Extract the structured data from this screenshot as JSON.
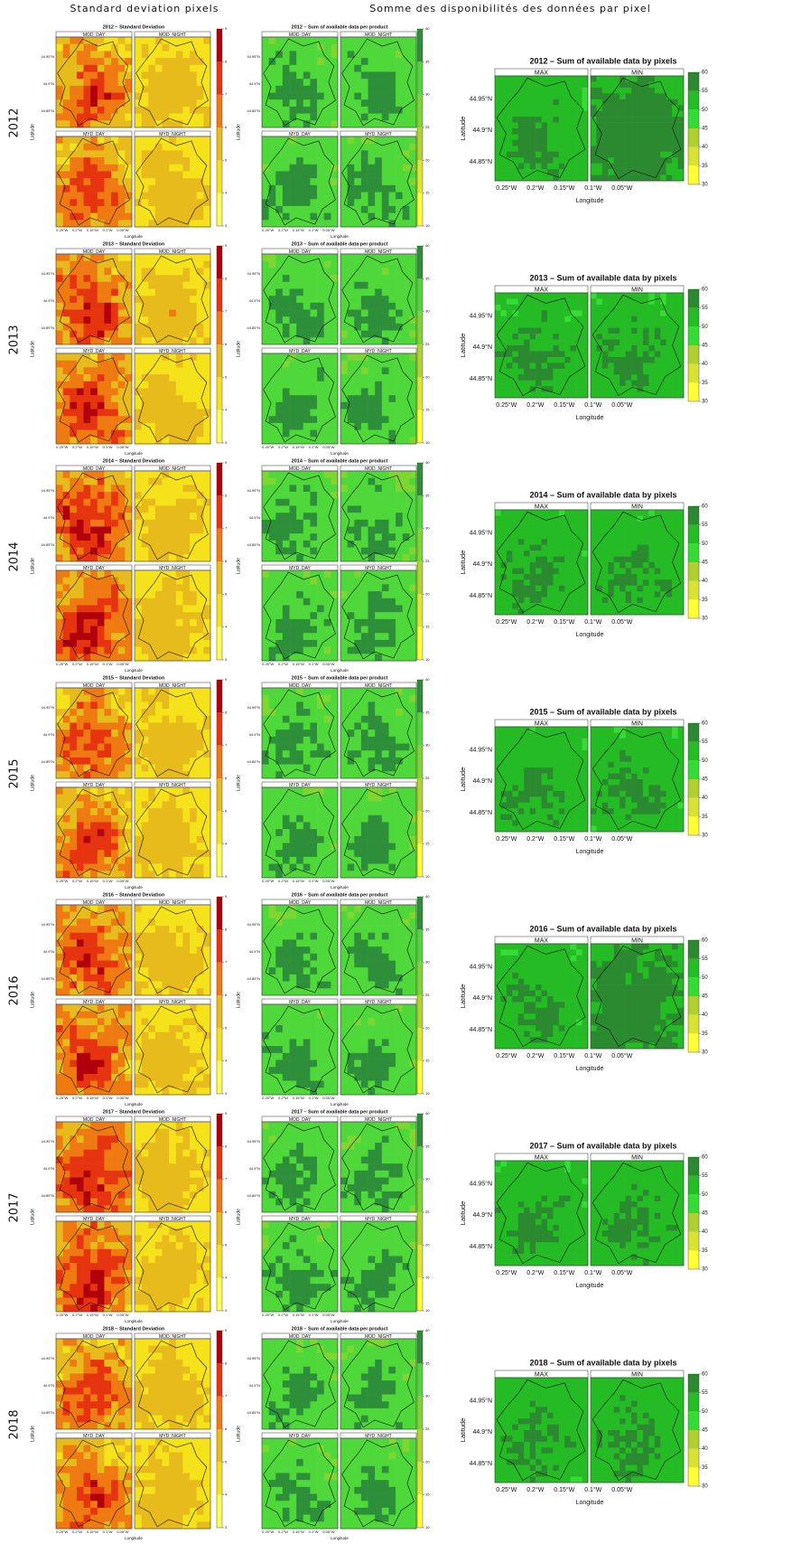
{
  "headers": {
    "left": "Standard deviation pixels",
    "right": "Somme des disponibilités des données par pixel"
  },
  "rows": [
    {
      "year": "2012",
      "sd_title": "2012 – Standard Deviation",
      "sum_title": "2012 – Sum of available data per product",
      "pix_title": "2012 – Sum of available data by pixels"
    },
    {
      "year": "2013",
      "sd_title": "2013 – Standard Deviation",
      "sum_title": "2013 – Sum of available data per product",
      "pix_title": "2013 – Sum of available data by pixels"
    },
    {
      "year": "2014",
      "sd_title": "2014 – Standard Deviation",
      "sum_title": "2014 – Sum of available data per product",
      "pix_title": "2014 – Sum of available data by pixels"
    },
    {
      "year": "2015",
      "sd_title": "2015 – Standard Deviation",
      "sum_title": "2015 – Sum of available data per product",
      "pix_title": "2015 – Sum of available data by pixels"
    },
    {
      "year": "2016",
      "sd_title": "2016 – Standard Deviation",
      "sum_title": "2016 – Sum of available data per product",
      "pix_title": "2016 – Sum of available data by pixels"
    },
    {
      "year": "2017",
      "sd_title": "2017 – Standard Deviation",
      "sum_title": "2017 – Sum of available data per product",
      "pix_title": "2017 – Sum of available data by pixels"
    },
    {
      "year": "2018",
      "sd_title": "2018 – Standard Deviation",
      "sum_title": "2018 – Sum of available data per product",
      "pix_title": "2018 – Sum of available data by pixels"
    }
  ],
  "product_labels": [
    "MOD_DAY",
    "MOD_NIGHT",
    "MYD_DAY",
    "MYD_NIGHT"
  ],
  "pixel_labels": [
    "MAX",
    "MIN"
  ],
  "sd_scale": [
    3,
    4,
    5,
    6,
    7,
    8,
    9
  ],
  "sum_scale": [
    10,
    15,
    20,
    25,
    30,
    35,
    40
  ],
  "pix_scale": [
    30,
    35,
    40,
    45,
    50,
    55,
    60
  ],
  "lat_ticks": [
    "44.95°N",
    "44.9°N",
    "44.85°N"
  ],
  "lon_ticks": [
    "0.25°W",
    "0.2°W",
    "0.15°W",
    "0.1°W",
    "0.05°W"
  ],
  "x_label": "Longitude",
  "y_label": "Latitude"
}
